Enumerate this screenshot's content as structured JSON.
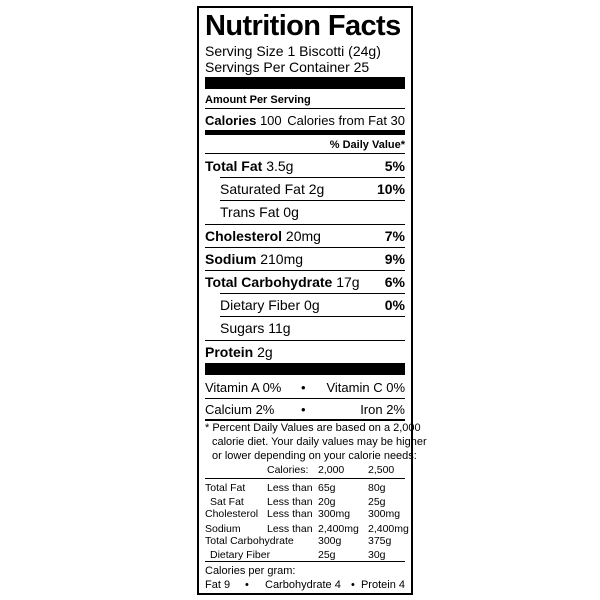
{
  "title": "Nutrition Facts",
  "serving_size": "Serving Size 1 Biscotti (24g)",
  "servings_per_container": "Servings Per Container 25",
  "amount_per_serving": "Amount Per Serving",
  "calories": {
    "label": "Calories",
    "value": "100",
    "from_fat": "Calories from Fat 30"
  },
  "daily_value_header": "% Daily Value*",
  "nutrients": [
    {
      "label": "Total Fat",
      "amount": "3.5g",
      "dv": "5%"
    },
    {
      "label": "Saturated Fat",
      "amount": "2g",
      "dv": "10%"
    },
    {
      "label": "Trans Fat",
      "amount": "0g",
      "dv": ""
    },
    {
      "label": "Cholesterol",
      "amount": "20mg",
      "dv": "7%"
    },
    {
      "label": "Sodium",
      "amount": "210mg",
      "dv": "9%"
    },
    {
      "label": "Total Carbohydrate",
      "amount": "17g",
      "dv": "6%"
    },
    {
      "label": "Dietary Fiber",
      "amount": "0g",
      "dv": "0%"
    },
    {
      "label": "Sugars",
      "amount": "11g",
      "dv": ""
    },
    {
      "label": "Protein",
      "amount": "2g",
      "dv": ""
    }
  ],
  "vitamins": [
    {
      "left": "Vitamin A 0%",
      "right": "Vitamin C 0%"
    },
    {
      "left": "Calcium 2%",
      "right": "Iron 2%"
    }
  ],
  "bullet": "•",
  "footnote": [
    "* Percent Daily Values are based on a 2,000",
    "calorie diet. Your daily values may be higher",
    "or lower depending on your calorie needs:"
  ],
  "dv_table": {
    "header": [
      "",
      "Calories:",
      "2,000",
      "2,500"
    ],
    "rows": [
      [
        "Total Fat",
        "Less than",
        "65g",
        "80g"
      ],
      [
        "Sat Fat",
        "Less than",
        "20g",
        "25g"
      ],
      [
        "Cholesterol",
        "Less than",
        "300mg",
        "300mg"
      ],
      [
        "Sodium",
        "Less than",
        "2,400mg",
        "2,400mg"
      ],
      [
        "Total Carbohydrate",
        "",
        "300g",
        "375g"
      ],
      [
        "Dietary Fiber",
        "",
        "25g",
        "30g"
      ]
    ]
  },
  "calories_per_gram": {
    "label": "Calories per gram:",
    "fat": "Fat 9",
    "carb": "Carbohydrate 4",
    "protein": "Protein 4"
  }
}
